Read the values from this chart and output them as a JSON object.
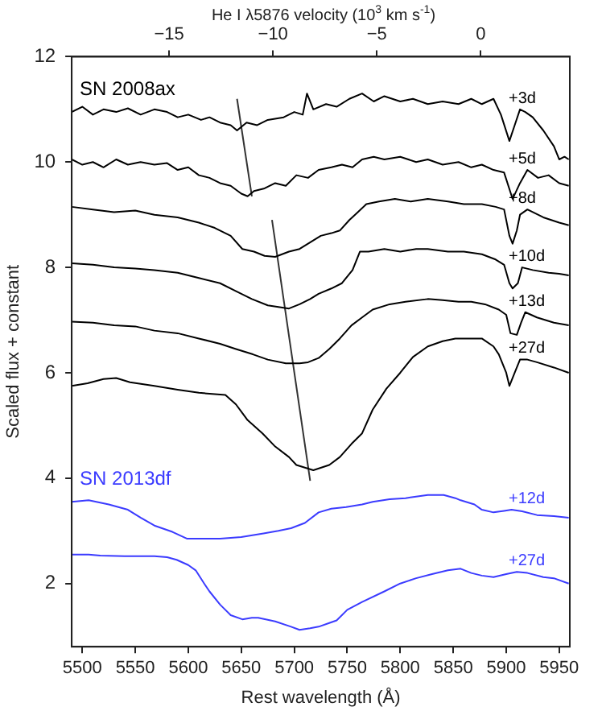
{
  "chart_data": {
    "type": "line",
    "xlabel": "Rest wavelength (Å)",
    "ylabel": "Scaled flux + constant",
    "x2label": "He I λ5876 velocity (10$^{3}$ km s$^{-1}$)",
    "xlim": [
      5490,
      5960
    ],
    "xticks": [
      5500,
      5550,
      5600,
      5650,
      5700,
      5750,
      5800,
      5850,
      5900,
      5950
    ],
    "ylim": [
      0.8,
      12
    ],
    "yticks": [
      2,
      4,
      6,
      8,
      10,
      12
    ],
    "x2lim": [
      -19.69,
      4.29
    ],
    "x2ticks": [
      -15,
      -10,
      -5,
      0
    ],
    "grid": false,
    "legend": false,
    "marker": "none",
    "line_style": "solid",
    "annotations": [
      "SN 2008ax",
      "SN 2013df"
    ],
    "series": [
      {
        "name": "+3d",
        "color": "#000000",
        "x": [
          5490,
          5500,
          5510,
          5520,
          5532,
          5543,
          5555,
          5568,
          5580,
          5590,
          5600,
          5612,
          5620,
          5630,
          5640,
          5646,
          5655,
          5665,
          5675,
          5690,
          5700,
          5708,
          5712,
          5718,
          5730,
          5740,
          5752,
          5764,
          5775,
          5785,
          5800,
          5812,
          5826,
          5840,
          5855,
          5867,
          5877,
          5888,
          5895,
          5903,
          5908,
          5913,
          5918,
          5925,
          5935,
          5945,
          5950,
          5955,
          5959
        ],
        "values": [
          10.95,
          11.05,
          10.9,
          11.0,
          10.95,
          11.02,
          10.9,
          11.0,
          10.95,
          10.85,
          10.9,
          10.8,
          10.85,
          10.75,
          10.7,
          10.6,
          10.75,
          10.7,
          10.8,
          10.85,
          10.95,
          10.9,
          11.3,
          11.0,
          11.1,
          11.05,
          11.2,
          11.3,
          11.15,
          11.25,
          11.15,
          11.2,
          11.1,
          11.15,
          11.1,
          11.2,
          11.1,
          11.2,
          10.9,
          10.4,
          10.7,
          11.0,
          10.95,
          10.85,
          10.6,
          10.3,
          10.05,
          10.1,
          10.05
        ]
      },
      {
        "name": "+5d",
        "color": "#000000",
        "x": [
          5490,
          5500,
          5510,
          5520,
          5532,
          5543,
          5555,
          5568,
          5580,
          5590,
          5600,
          5610,
          5620,
          5630,
          5640,
          5650,
          5656,
          5662,
          5672,
          5682,
          5692,
          5702,
          5713,
          5723,
          5735,
          5745,
          5755,
          5764,
          5775,
          5785,
          5800,
          5815,
          5826,
          5840,
          5855,
          5867,
          5877,
          5888,
          5898,
          5906,
          5913,
          5920,
          5930,
          5940,
          5950,
          5959
        ],
        "values": [
          10.05,
          9.95,
          10.0,
          9.9,
          10.05,
          9.95,
          10.0,
          9.95,
          9.98,
          9.85,
          9.9,
          9.75,
          9.7,
          9.6,
          9.55,
          9.4,
          9.35,
          9.45,
          9.5,
          9.6,
          9.55,
          9.75,
          9.7,
          9.85,
          9.9,
          9.95,
          9.9,
          10.05,
          10.1,
          10.05,
          10.1,
          10.0,
          10.05,
          9.95,
          10.0,
          9.9,
          9.95,
          9.85,
          9.8,
          9.3,
          9.6,
          9.85,
          9.7,
          9.75,
          9.6,
          9.55
        ]
      },
      {
        "name": "+8d",
        "color": "#000000",
        "x": [
          5490,
          5510,
          5530,
          5550,
          5568,
          5590,
          5610,
          5625,
          5640,
          5651,
          5662,
          5672,
          5682,
          5695,
          5705,
          5713,
          5725,
          5735,
          5743,
          5752,
          5760,
          5768,
          5780,
          5795,
          5810,
          5826,
          5845,
          5860,
          5877,
          5890,
          5898,
          5903,
          5906,
          5910,
          5913,
          5920,
          5935,
          5950,
          5959
        ],
        "values": [
          9.15,
          9.1,
          9.05,
          9.08,
          9.0,
          8.95,
          8.85,
          8.75,
          8.6,
          8.35,
          8.3,
          8.22,
          8.2,
          8.3,
          8.35,
          8.45,
          8.6,
          8.65,
          8.7,
          8.9,
          9.05,
          9.2,
          9.25,
          9.3,
          9.25,
          9.3,
          9.25,
          9.2,
          9.2,
          9.15,
          9.1,
          8.6,
          8.45,
          8.7,
          9.0,
          9.1,
          8.95,
          8.85,
          8.8
        ]
      },
      {
        "name": "+10d",
        "color": "#000000",
        "x": [
          5490,
          5510,
          5530,
          5550,
          5568,
          5590,
          5610,
          5630,
          5645,
          5660,
          5675,
          5685,
          5695,
          5705,
          5715,
          5723,
          5735,
          5745,
          5755,
          5762,
          5770,
          5785,
          5800,
          5815,
          5826,
          5845,
          5860,
          5877,
          5890,
          5898,
          5903,
          5906,
          5911,
          5915,
          5925,
          5940,
          5950,
          5959
        ],
        "values": [
          8.08,
          8.05,
          8.0,
          7.98,
          7.95,
          7.9,
          7.8,
          7.7,
          7.55,
          7.4,
          7.28,
          7.25,
          7.22,
          7.3,
          7.4,
          7.5,
          7.6,
          7.7,
          7.95,
          8.3,
          8.3,
          8.35,
          8.3,
          8.35,
          8.35,
          8.3,
          8.3,
          8.25,
          8.15,
          8.05,
          7.7,
          7.6,
          7.7,
          8.0,
          7.95,
          7.9,
          7.88,
          7.85
        ]
      },
      {
        "name": "+13d",
        "color": "#000000",
        "x": [
          5490,
          5510,
          5530,
          5550,
          5568,
          5590,
          5610,
          5630,
          5645,
          5661,
          5675,
          5692,
          5705,
          5713,
          5723,
          5733,
          5743,
          5754,
          5764,
          5774,
          5790,
          5805,
          5826,
          5840,
          5855,
          5867,
          5880,
          5893,
          5900,
          5904,
          5910,
          5914,
          5918,
          5929,
          5945,
          5959
        ],
        "values": [
          6.97,
          6.95,
          6.9,
          6.88,
          6.8,
          6.75,
          6.65,
          6.55,
          6.45,
          6.35,
          6.25,
          6.18,
          6.18,
          6.2,
          6.28,
          6.45,
          6.65,
          6.9,
          7.05,
          7.2,
          7.3,
          7.35,
          7.4,
          7.38,
          7.35,
          7.35,
          7.3,
          7.2,
          7.1,
          6.75,
          6.72,
          6.95,
          7.15,
          7.05,
          6.95,
          6.9
        ]
      },
      {
        "name": "+27d",
        "color": "#000000",
        "x": [
          5490,
          5505,
          5520,
          5532,
          5545,
          5568,
          5590,
          5610,
          5635,
          5645,
          5656,
          5670,
          5682,
          5695,
          5702,
          5718,
          5733,
          5743,
          5754,
          5764,
          5774,
          5787,
          5800,
          5812,
          5826,
          5840,
          5852,
          5867,
          5877,
          5888,
          5893,
          5900,
          5903,
          5908,
          5913,
          5920,
          5929,
          5945,
          5959
        ],
        "values": [
          5.75,
          5.8,
          5.88,
          5.9,
          5.82,
          5.75,
          5.68,
          5.62,
          5.58,
          5.4,
          5.1,
          4.85,
          4.6,
          4.4,
          4.25,
          4.15,
          4.25,
          4.4,
          4.65,
          4.85,
          5.3,
          5.7,
          6.0,
          6.3,
          6.5,
          6.6,
          6.65,
          6.65,
          6.65,
          6.5,
          6.35,
          6.0,
          5.75,
          6.0,
          6.25,
          6.25,
          6.2,
          6.1,
          6.0
        ]
      },
      {
        "name": "+12d",
        "color": "#3b3bff",
        "x": [
          5490,
          5506,
          5525,
          5543,
          5555,
          5568,
          5585,
          5599,
          5615,
          5630,
          5650,
          5671,
          5685,
          5697,
          5710,
          5723,
          5735,
          5749,
          5764,
          5774,
          5790,
          5805,
          5815,
          5826,
          5841,
          5852,
          5857,
          5870,
          5877,
          5888,
          5898,
          5905,
          5915,
          5929,
          5945,
          5959
        ],
        "values": [
          3.55,
          3.58,
          3.5,
          3.4,
          3.25,
          3.1,
          2.98,
          2.85,
          2.85,
          2.85,
          2.88,
          2.95,
          3.0,
          3.05,
          3.15,
          3.35,
          3.42,
          3.45,
          3.5,
          3.55,
          3.6,
          3.62,
          3.65,
          3.68,
          3.68,
          3.62,
          3.58,
          3.5,
          3.4,
          3.35,
          3.38,
          3.4,
          3.37,
          3.3,
          3.28,
          3.25
        ]
      },
      {
        "name": "+27d",
        "color": "#3b3bff",
        "x": [
          5490,
          5506,
          5517,
          5540,
          5568,
          5580,
          5589,
          5600,
          5607,
          5615,
          5620,
          5630,
          5640,
          5651,
          5660,
          5666,
          5682,
          5697,
          5705,
          5715,
          5723,
          5733,
          5740,
          5750,
          5764,
          5785,
          5800,
          5815,
          5830,
          5845,
          5857,
          5867,
          5877,
          5888,
          5900,
          5910,
          5920,
          5935,
          5945,
          5959
        ],
        "values": [
          2.55,
          2.55,
          2.53,
          2.52,
          2.52,
          2.5,
          2.45,
          2.35,
          2.25,
          2.0,
          1.85,
          1.6,
          1.4,
          1.32,
          1.35,
          1.35,
          1.28,
          1.18,
          1.12,
          1.15,
          1.18,
          1.25,
          1.3,
          1.5,
          1.65,
          1.85,
          2.0,
          2.1,
          2.18,
          2.25,
          2.28,
          2.2,
          2.15,
          2.12,
          2.18,
          2.22,
          2.2,
          2.12,
          2.1,
          2.0
        ]
      },
      {
        "type": "line",
        "color": "#333333",
        "x": [
          5646,
          5660
        ],
        "values": [
          11.2,
          9.35
        ]
      },
      {
        "type": "line",
        "color": "#333333",
        "x": [
          5679,
          5715
        ],
        "values": [
          8.9,
          3.95
        ]
      }
    ]
  }
}
